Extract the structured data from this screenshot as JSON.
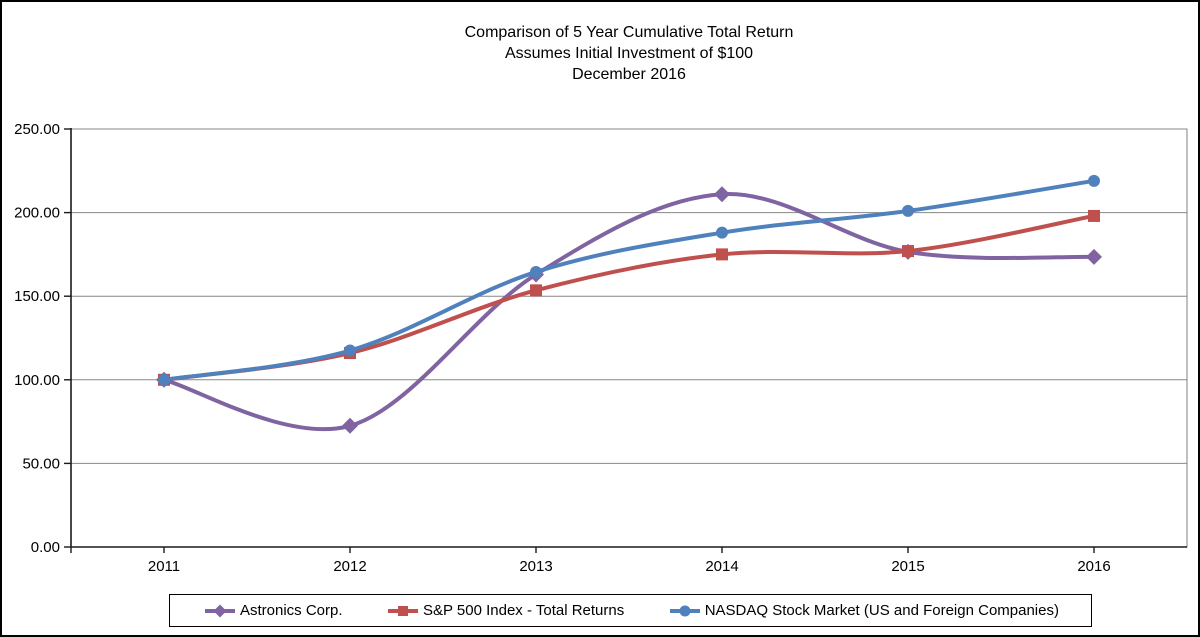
{
  "chart_data": {
    "type": "line",
    "title": "Comparison of 5 Year Cumulative Total Return",
    "subtitle": "Assumes Initial Investment of $100",
    "subtitle2": "December 2016",
    "categories": [
      "2011",
      "2012",
      "2013",
      "2014",
      "2015",
      "2016"
    ],
    "series": [
      {
        "name": "Astronics Corp.",
        "marker": "diamond",
        "color": "#8064A2",
        "values": [
          100.0,
          72.5,
          163.0,
          211.0,
          176.5,
          173.5
        ]
      },
      {
        "name": "S&P 500 Index - Total Returns",
        "marker": "square",
        "color": "#C0504D",
        "values": [
          100.0,
          116.0,
          153.5,
          175.0,
          177.0,
          198.0
        ]
      },
      {
        "name": "NASDAQ Stock Market (US and Foreign Companies)",
        "marker": "circle",
        "color": "#4F81BD",
        "values": [
          100.0,
          117.5,
          164.5,
          188.0,
          201.0,
          219.0
        ]
      }
    ],
    "y_axis": {
      "min": 0,
      "max": 250,
      "step": 50,
      "tick_format": "two_decimals"
    },
    "x_axis": {
      "label_values": [
        "2011",
        "2012",
        "2013",
        "2014",
        "2015",
        "2016"
      ]
    },
    "grid": true,
    "smoothed": true,
    "legend_position": "bottom",
    "colors": {
      "gridline": "#878787",
      "axis": "#1a1a1a",
      "plot_border": "#808080"
    }
  }
}
